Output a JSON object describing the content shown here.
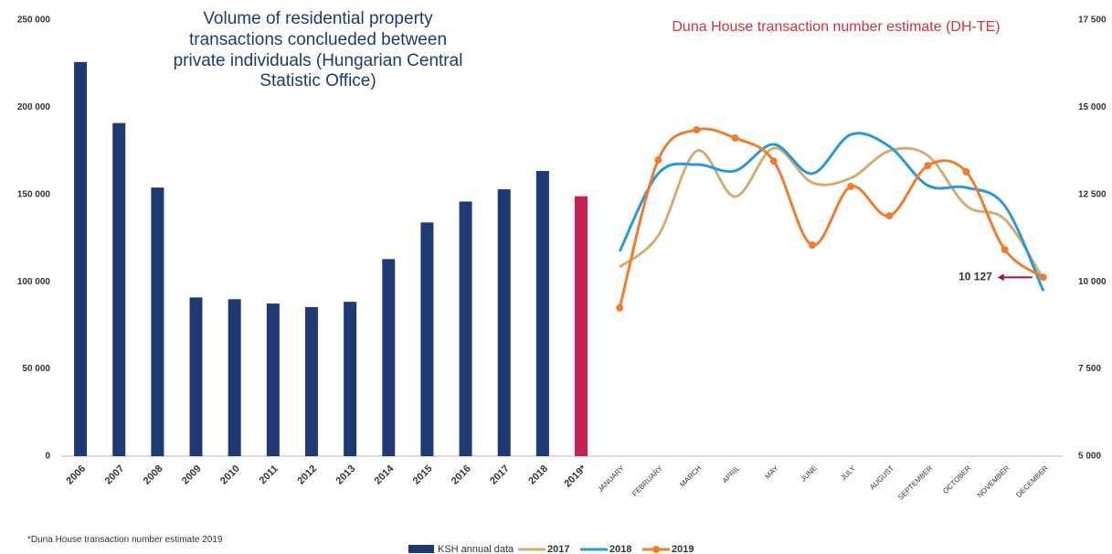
{
  "chart_data": [
    {
      "type": "bar",
      "title": "Volume of residential property transactions conclueded between private individuals (Hungarian Central Statistic Office)",
      "categories": [
        "2006",
        "2007",
        "2008",
        "2009",
        "2010",
        "2011",
        "2012",
        "2013",
        "2014",
        "2015",
        "2016",
        "2017",
        "2018",
        "2019*"
      ],
      "series": [
        {
          "name": "KSH annual data",
          "color": "#1f3a73",
          "colors": [
            "#1f3a73",
            "#1f3a73",
            "#1f3a73",
            "#1f3a73",
            "#1f3a73",
            "#1f3a73",
            "#1f3a73",
            "#1f3a73",
            "#1f3a73",
            "#1f3a73",
            "#1f3a73",
            "#1f3a73",
            "#1f3a73",
            "#c8204f"
          ],
          "values": [
            226000,
            191000,
            154000,
            91000,
            90000,
            87500,
            85500,
            88500,
            113000,
            134000,
            146000,
            153000,
            163500,
            149000
          ]
        }
      ],
      "ylim": [
        0,
        250000
      ],
      "yticks": [
        0,
        {
          "value": 50000,
          "label": "50 000"
        },
        {
          "value": 100000,
          "label": "100 000"
        },
        {
          "value": 150000,
          "label": "150 000"
        },
        {
          "value": 200000,
          "label": "200 000"
        },
        {
          "value": 250000,
          "label": "250 000"
        }
      ]
    },
    {
      "type": "line",
      "title": "Duna House transaction number estimate (DH-TE)",
      "title_color": "#d2323c",
      "categories": [
        "JANUARY",
        "FEBRUARY",
        "MARCH",
        "APRIL",
        "MAY",
        "JUNE",
        "JULY",
        "AUGUST",
        "SEPTEMBER",
        "OCTOBER",
        "NOVEMBER",
        "DECEMBER"
      ],
      "series": [
        {
          "name": "2017",
          "color": "#d4ad74",
          "axis": "y2",
          "markers": false,
          "values": [
            10420,
            11320,
            13750,
            12440,
            13830,
            12840,
            12970,
            13750,
            13620,
            12180,
            11790,
            10080
          ]
        },
        {
          "name": "2018",
          "color": "#2a9ad6",
          "axis": "y2",
          "markers": false,
          "values": [
            10870,
            13100,
            13360,
            13180,
            13940,
            13100,
            14220,
            13880,
            12760,
            12700,
            12180,
            9740
          ]
        },
        {
          "name": "2019",
          "color": "#ef7d31",
          "axis": "y2",
          "markers": true,
          "values": [
            9250,
            13490,
            14355,
            14120,
            13460,
            11050,
            12730,
            11890,
            13330,
            13150,
            10920,
            10127
          ]
        }
      ],
      "y2lim": [
        5000,
        17500
      ],
      "y2ticks": [
        {
          "value": 5000,
          "label": "5 000"
        },
        {
          "value": 7500,
          "label": "7 500"
        },
        {
          "value": 10000,
          "label": "10 000"
        },
        {
          "value": 12500,
          "label": "12 500"
        },
        {
          "value": 15000,
          "label": "15 000"
        },
        {
          "value": 17500,
          "label": "17 500"
        }
      ],
      "annotation": {
        "value": 10127,
        "label": "10 127",
        "color": "#a4133c"
      }
    }
  ],
  "footnote": "*Duna House transaction number estimate 2019"
}
